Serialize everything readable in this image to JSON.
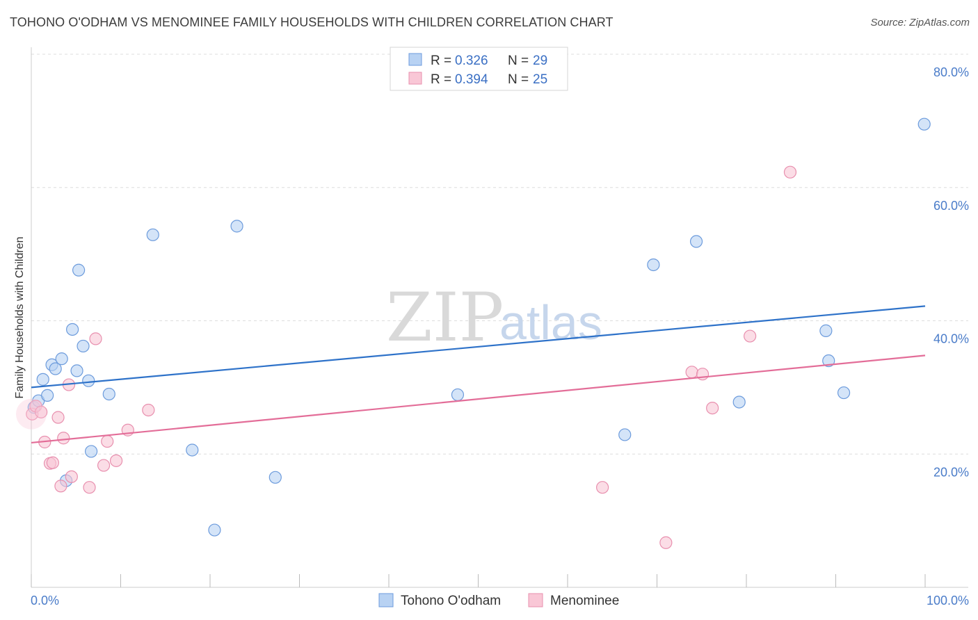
{
  "title": "TOHONO O'ODHAM VS MENOMINEE FAMILY HOUSEHOLDS WITH CHILDREN CORRELATION CHART",
  "source": "Source: ZipAtlas.com",
  "watermark": {
    "zip": "ZIP",
    "atlas": "atlas"
  },
  "colors": {
    "series1_fill": "#b8d2f3",
    "series1_stroke": "#6c9bdc",
    "series1_line": "#2e72c9",
    "series2_fill": "#f9c7d6",
    "series2_stroke": "#e88fae",
    "series2_line": "#e36d98",
    "grid": "#dddddd",
    "tick_label": "#4a7cc9"
  },
  "legend": {
    "rows": [
      {
        "r_label": "R =",
        "r_value": "0.326",
        "n_label": "N =",
        "n_value": "29"
      },
      {
        "r_label": "R =",
        "r_value": "0.394",
        "n_label": "N =",
        "n_value": "25"
      }
    ]
  },
  "chart_data": {
    "type": "scatter",
    "title": "TOHONO O'ODHAM VS MENOMINEE FAMILY HOUSEHOLDS WITH CHILDREN CORRELATION CHART",
    "xlabel": "",
    "ylabel": "Family Households with Children",
    "xlim": [
      0,
      100
    ],
    "ylim": [
      0,
      80
    ],
    "x_ticks": [
      0,
      10,
      20,
      30,
      40,
      50,
      60,
      70,
      80,
      90,
      100
    ],
    "x_tick_labels": {
      "start": "0.0%",
      "end": "100.0%"
    },
    "y_ticks": [
      20,
      40,
      60,
      80
    ],
    "y_tick_labels": [
      "20.0%",
      "40.0%",
      "60.0%",
      "80.0%"
    ],
    "grid": true,
    "legend_position": "top-center",
    "series": [
      {
        "name": "Tohono O'odham",
        "r": 0.326,
        "n": 29,
        "trend": {
          "x0": 0,
          "y0": 30.0,
          "x1": 100,
          "y1": 42.2
        },
        "points": [
          [
            0.3,
            27.0
          ],
          [
            0.8,
            28.0
          ],
          [
            1.3,
            31.2
          ],
          [
            1.8,
            28.8
          ],
          [
            2.3,
            33.4
          ],
          [
            2.7,
            32.8
          ],
          [
            3.4,
            34.3
          ],
          [
            3.9,
            16.0
          ],
          [
            4.6,
            38.7
          ],
          [
            5.1,
            32.5
          ],
          [
            5.3,
            47.6
          ],
          [
            5.8,
            36.2
          ],
          [
            6.4,
            31.0
          ],
          [
            6.7,
            20.4
          ],
          [
            8.7,
            29.0
          ],
          [
            13.6,
            52.9
          ],
          [
            18.0,
            20.6
          ],
          [
            20.5,
            8.6
          ],
          [
            23.0,
            54.2
          ],
          [
            27.3,
            16.5
          ],
          [
            47.7,
            28.9
          ],
          [
            66.4,
            22.9
          ],
          [
            69.6,
            48.4
          ],
          [
            74.4,
            51.9
          ],
          [
            79.2,
            27.8
          ],
          [
            88.9,
            38.5
          ],
          [
            89.2,
            34.0
          ],
          [
            90.9,
            29.2
          ],
          [
            99.9,
            69.5
          ]
        ]
      },
      {
        "name": "Menominee",
        "r": 0.394,
        "n": 25,
        "trend": {
          "x0": 0,
          "y0": 21.7,
          "x1": 100,
          "y1": 34.8
        },
        "points": [
          [
            0.1,
            26.0
          ],
          [
            0.5,
            27.2
          ],
          [
            1.1,
            26.3
          ],
          [
            1.5,
            21.8
          ],
          [
            2.1,
            18.6
          ],
          [
            2.4,
            18.7
          ],
          [
            3.0,
            25.5
          ],
          [
            3.3,
            15.2
          ],
          [
            3.6,
            22.4
          ],
          [
            4.5,
            16.6
          ],
          [
            4.2,
            30.4
          ],
          [
            6.5,
            15.0
          ],
          [
            7.2,
            37.3
          ],
          [
            8.1,
            18.3
          ],
          [
            8.5,
            21.9
          ],
          [
            9.5,
            19.0
          ],
          [
            10.8,
            23.6
          ],
          [
            13.1,
            26.6
          ],
          [
            63.9,
            15.0
          ],
          [
            73.9,
            32.3
          ],
          [
            75.1,
            32.0
          ],
          [
            76.2,
            26.9
          ],
          [
            80.4,
            37.7
          ],
          [
            84.9,
            62.3
          ],
          [
            71.0,
            6.7
          ]
        ]
      }
    ]
  },
  "bottom_legend": [
    {
      "label": "Tohono O'odham"
    },
    {
      "label": "Menominee"
    }
  ]
}
